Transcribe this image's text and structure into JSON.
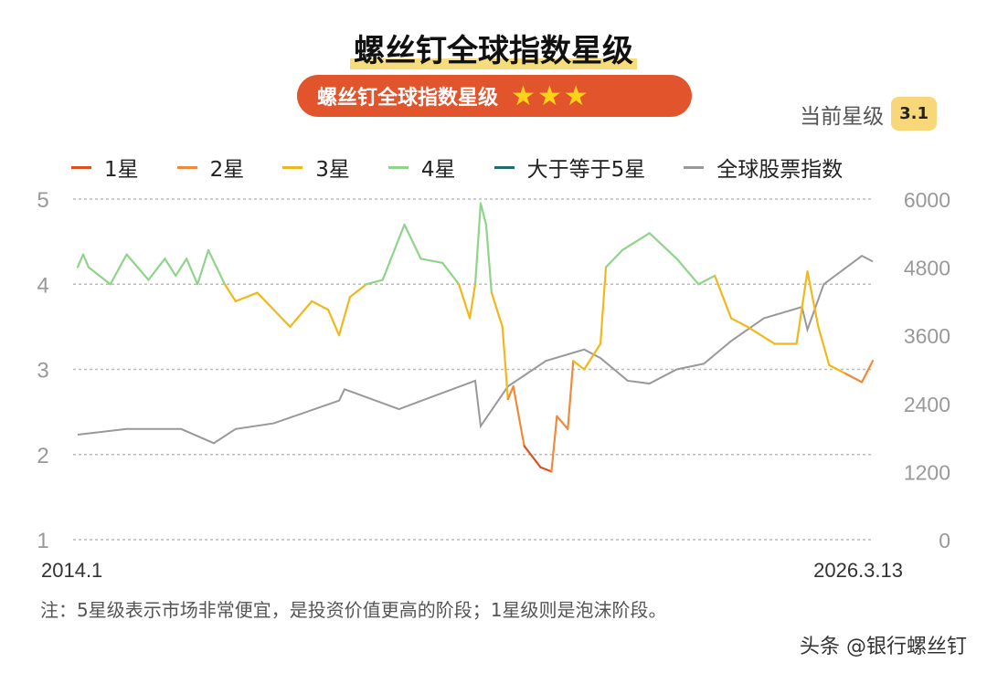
{
  "header": {
    "title": "螺丝钉全球指数星级",
    "pill_label": "螺丝钉全球指数星级",
    "pill_stars": "★★★",
    "current_label": "当前星级",
    "current_value": "3.1"
  },
  "footer": {
    "note": "注：5星级表示市场非常便宜，是投资价值更高的阶段；1星级则是泡沫阶段。",
    "watermark": "头条 @银行螺丝钉"
  },
  "chart_data": {
    "type": "line",
    "legend": [
      {
        "name": "1星",
        "color": "#d9531e"
      },
      {
        "name": "2星",
        "color": "#ef8a3c"
      },
      {
        "name": "3星",
        "color": "#f0b81a"
      },
      {
        "name": "4星",
        "color": "#8fd48a"
      },
      {
        "name": "大于等于5星",
        "color": "#1f6e6a"
      },
      {
        "name": "全球股票指数",
        "color": "#999999"
      }
    ],
    "legend_position": "top",
    "x_ticks": [
      "2014.1",
      "2026.3.13"
    ],
    "x_range": [
      "2014-01",
      "2026-03"
    ],
    "y_left": {
      "range": [
        1,
        5
      ],
      "ticks": [
        "1",
        "2",
        "3",
        "4",
        "5"
      ]
    },
    "y_right": {
      "range": [
        0,
        6000
      ],
      "ticks": [
        "0",
        "1200",
        "2400",
        "3600",
        "4800",
        "6000"
      ]
    },
    "grid": true,
    "star_series": {
      "points": [
        [
          "2014-01",
          4.2
        ],
        [
          "2014-02",
          4.35
        ],
        [
          "2014-03",
          4.2
        ],
        [
          "2014-06",
          4.05
        ],
        [
          "2014-07",
          4.0
        ],
        [
          "2014-10",
          4.35
        ],
        [
          "2014-12",
          4.2
        ],
        [
          "2015-02",
          4.05
        ],
        [
          "2015-05",
          4.3
        ],
        [
          "2015-07",
          4.1
        ],
        [
          "2015-09",
          4.3
        ],
        [
          "2015-11",
          4.0
        ],
        [
          "2016-01",
          4.4
        ],
        [
          "2016-04",
          4.0
        ],
        [
          "2016-06",
          3.8
        ],
        [
          "2016-10",
          3.9
        ],
        [
          "2017-01",
          3.7
        ],
        [
          "2017-04",
          3.5
        ],
        [
          "2017-08",
          3.8
        ],
        [
          "2017-11",
          3.7
        ],
        [
          "2018-01",
          3.4
        ],
        [
          "2018-03",
          3.85
        ],
        [
          "2018-06",
          4.0
        ],
        [
          "2018-09",
          4.05
        ],
        [
          "2019-01",
          4.7
        ],
        [
          "2019-04",
          4.3
        ],
        [
          "2019-08",
          4.25
        ],
        [
          "2019-11",
          4.0
        ],
        [
          "2020-01",
          3.6
        ],
        [
          "2020-02",
          4.0
        ],
        [
          "2020-03",
          4.95
        ],
        [
          "2020-04",
          4.7
        ],
        [
          "2020-05",
          3.9
        ],
        [
          "2020-07",
          3.5
        ],
        [
          "2020-08",
          2.65
        ],
        [
          "2020-09",
          2.8
        ],
        [
          "2020-11",
          2.1
        ],
        [
          "2021-02",
          1.85
        ],
        [
          "2021-04",
          1.8
        ],
        [
          "2021-05",
          2.45
        ],
        [
          "2021-07",
          2.3
        ],
        [
          "2021-08",
          3.1
        ],
        [
          "2021-10",
          3.0
        ],
        [
          "2022-01",
          3.3
        ],
        [
          "2022-02",
          4.2
        ],
        [
          "2022-05",
          4.4
        ],
        [
          "2022-10",
          4.6
        ],
        [
          "2023-03",
          4.3
        ],
        [
          "2023-07",
          4.0
        ],
        [
          "2023-10",
          4.1
        ],
        [
          "2024-01",
          3.6
        ],
        [
          "2024-04",
          3.5
        ],
        [
          "2024-09",
          3.3
        ],
        [
          "2025-01",
          3.3
        ],
        [
          "2025-03",
          4.15
        ],
        [
          "2025-05",
          3.5
        ],
        [
          "2025-07",
          3.05
        ],
        [
          "2025-10",
          2.95
        ],
        [
          "2026-01",
          2.85
        ],
        [
          "2026-03",
          3.1
        ]
      ]
    },
    "index_series": {
      "name": "全球股票指数",
      "points": [
        [
          "2014-01",
          1850
        ],
        [
          "2014-10",
          1950
        ],
        [
          "2015-08",
          1950
        ],
        [
          "2016-02",
          1700
        ],
        [
          "2016-06",
          1950
        ],
        [
          "2017-01",
          2050
        ],
        [
          "2018-01",
          2450
        ],
        [
          "2018-02",
          2650
        ],
        [
          "2018-12",
          2300
        ],
        [
          "2019-07",
          2550
        ],
        [
          "2020-02",
          2800
        ],
        [
          "2020-03",
          2000
        ],
        [
          "2020-08",
          2700
        ],
        [
          "2021-03",
          3150
        ],
        [
          "2021-10",
          3350
        ],
        [
          "2022-01",
          3200
        ],
        [
          "2022-06",
          2800
        ],
        [
          "2022-10",
          2750
        ],
        [
          "2023-03",
          3000
        ],
        [
          "2023-08",
          3100
        ],
        [
          "2024-01",
          3500
        ],
        [
          "2024-07",
          3900
        ],
        [
          "2025-02",
          4100
        ],
        [
          "2025-03",
          3700
        ],
        [
          "2025-06",
          4500
        ],
        [
          "2026-01",
          5000
        ],
        [
          "2026-03",
          4900
        ]
      ]
    }
  }
}
